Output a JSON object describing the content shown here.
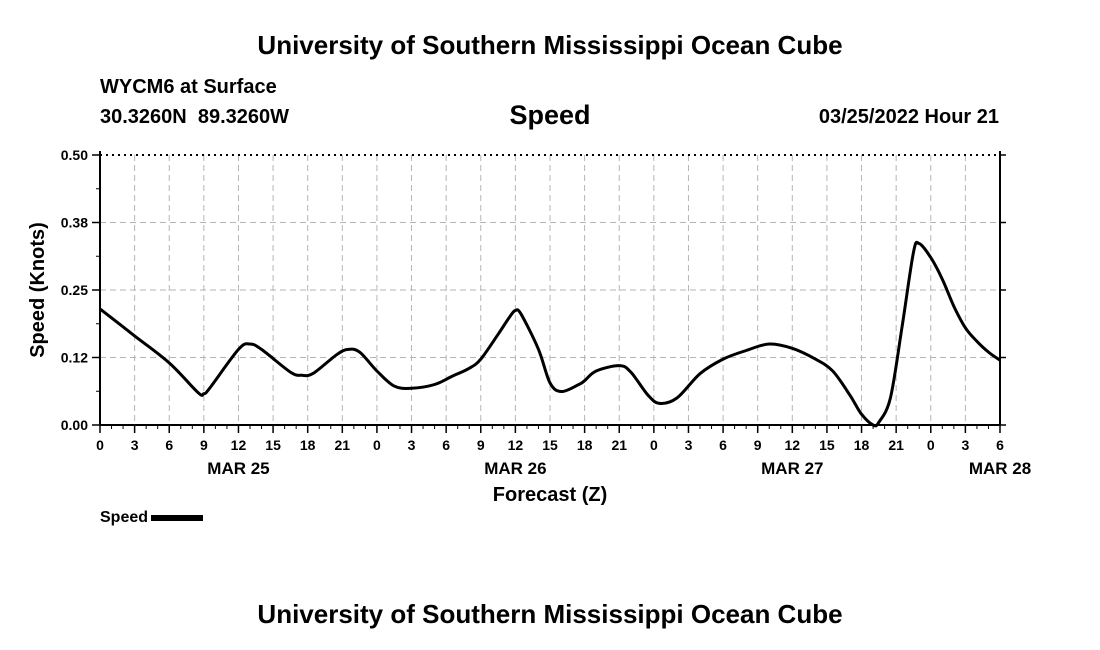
{
  "header": {
    "title": "University of Southern Mississippi Ocean Cube",
    "station": "WYCM6 at Surface",
    "coordinates": "30.3260N  89.3260W",
    "variable": "Speed",
    "datetime": "03/25/2022 Hour 21"
  },
  "footer": {
    "title": "University of Southern Mississippi Ocean Cube"
  },
  "chart_data": {
    "type": "line",
    "title": "Speed",
    "xlabel": "Forecast (Z)",
    "ylabel": "Speed (Knots)",
    "ylim": [
      0,
      0.5
    ],
    "y_ticks": [
      "0.00",
      "0.12",
      "0.25",
      "0.38",
      "0.50"
    ],
    "x_range_hours": [
      0,
      78
    ],
    "x_tick_labels": [
      "0",
      "3",
      "6",
      "9",
      "12",
      "15",
      "18",
      "21",
      "0",
      "3",
      "6",
      "9",
      "12",
      "15",
      "18",
      "21",
      "0",
      "3",
      "6",
      "9",
      "12",
      "15",
      "18",
      "21",
      "0",
      "3",
      "6"
    ],
    "date_labels": [
      {
        "label": "MAR 25",
        "hour": 12
      },
      {
        "label": "MAR 26",
        "hour": 36
      },
      {
        "label": "MAR 27",
        "hour": 60
      },
      {
        "label": "MAR 28",
        "hour": 78
      }
    ],
    "grid": true,
    "legend": [
      "Speed"
    ],
    "series": [
      {
        "name": "Speed",
        "color": "#000000",
        "x": [
          0,
          3,
          6,
          8.5,
          9,
          9.5,
          12,
          13,
          14,
          16.5,
          17.5,
          18.5,
          20.5,
          21.5,
          22.5,
          24,
          25.5,
          27,
          29,
          30.5,
          32,
          33,
          34.5,
          35.5,
          36,
          36.5,
          38,
          39,
          40,
          41.5,
          42,
          43,
          45,
          46,
          47.5,
          48.5,
          50,
          52,
          54,
          56,
          58,
          60,
          62,
          63.5,
          65,
          66,
          67,
          67.5,
          68.5,
          69.5,
          70.5,
          71,
          72,
          73,
          74,
          75,
          76,
          77,
          78
        ],
        "values": [
          0.215,
          0.165,
          0.115,
          0.06,
          0.058,
          0.068,
          0.14,
          0.15,
          0.14,
          0.098,
          0.092,
          0.096,
          0.13,
          0.14,
          0.135,
          0.1,
          0.072,
          0.068,
          0.075,
          0.09,
          0.105,
          0.122,
          0.168,
          0.2,
          0.212,
          0.205,
          0.14,
          0.078,
          0.062,
          0.075,
          0.082,
          0.1,
          0.11,
          0.098,
          0.055,
          0.04,
          0.05,
          0.095,
          0.122,
          0.138,
          0.15,
          0.142,
          0.122,
          0.1,
          0.055,
          0.02,
          0.0,
          0.005,
          0.05,
          0.18,
          0.32,
          0.336,
          0.31,
          0.27,
          0.22,
          0.18,
          0.155,
          0.135,
          0.12
        ]
      }
    ]
  }
}
